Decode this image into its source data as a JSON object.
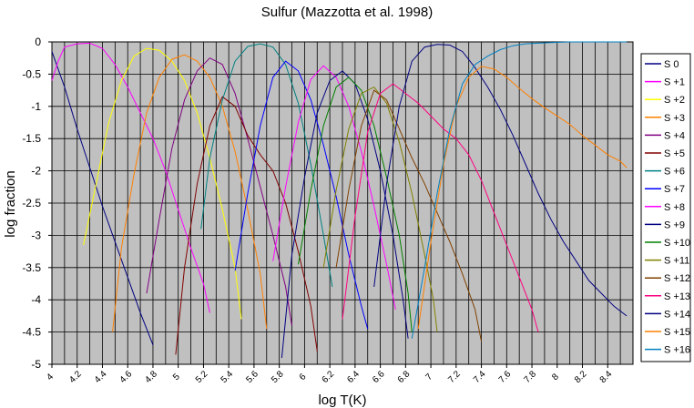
{
  "chart_data": {
    "type": "line",
    "title": "Sulfur  (Mazzotta et al. 1998)",
    "xlabel": "log T(K)",
    "ylabel": "log fraction",
    "xlim": [
      4.0,
      8.6
    ],
    "ylim": [
      -5,
      0
    ],
    "x_minor_step": 0.1,
    "x_tick_labels": [
      "4",
      "4.2",
      "4.4",
      "4.6",
      "4.8",
      "5",
      "5.2",
      "5.4",
      "5.6",
      "5.8",
      "6",
      "6.2",
      "6.4",
      "6.6",
      "6.8",
      "7",
      "7.2",
      "7.4",
      "7.6",
      "7.8",
      "8",
      "8.2",
      "8.4"
    ],
    "y_tick_labels": [
      "0",
      "-0.5",
      "-1",
      "-1.5",
      "-2",
      "-2.5",
      "-3",
      "-3.5",
      "-4",
      "-4.5",
      "-5"
    ],
    "grid": true,
    "plot_background": "#c0c0c0",
    "legend_position": "right",
    "series": [
      {
        "name": "S  0",
        "color": "#000080",
        "points": [
          [
            4.0,
            -0.15
          ],
          [
            4.1,
            -0.7
          ],
          [
            4.2,
            -1.35
          ],
          [
            4.3,
            -1.95
          ],
          [
            4.4,
            -2.55
          ],
          [
            4.5,
            -3.1
          ],
          [
            4.6,
            -3.65
          ],
          [
            4.7,
            -4.2
          ],
          [
            4.8,
            -4.7
          ]
        ]
      },
      {
        "name": "S +1",
        "color": "#ff00ff",
        "points": [
          [
            4.0,
            -0.6
          ],
          [
            4.05,
            -0.3
          ],
          [
            4.1,
            -0.08
          ],
          [
            4.2,
            -0.03
          ],
          [
            4.3,
            -0.02
          ],
          [
            4.4,
            -0.1
          ],
          [
            4.5,
            -0.35
          ],
          [
            4.6,
            -0.7
          ],
          [
            4.7,
            -1.1
          ],
          [
            4.8,
            -1.5
          ],
          [
            4.9,
            -2.0
          ],
          [
            5.0,
            -2.6
          ],
          [
            5.1,
            -3.2
          ],
          [
            5.2,
            -3.75
          ],
          [
            5.25,
            -4.2
          ]
        ]
      },
      {
        "name": "S +2",
        "color": "#ffff00",
        "points": [
          [
            4.25,
            -3.15
          ],
          [
            4.35,
            -2.2
          ],
          [
            4.45,
            -1.25
          ],
          [
            4.55,
            -0.6
          ],
          [
            4.65,
            -0.22
          ],
          [
            4.75,
            -0.1
          ],
          [
            4.85,
            -0.13
          ],
          [
            4.95,
            -0.3
          ],
          [
            5.05,
            -0.6
          ],
          [
            5.15,
            -1.1
          ],
          [
            5.25,
            -1.8
          ],
          [
            5.35,
            -2.6
          ],
          [
            5.45,
            -3.5
          ],
          [
            5.5,
            -4.3
          ]
        ]
      },
      {
        "name": "S +3",
        "color": "#ff8000",
        "points": [
          [
            4.48,
            -4.5
          ],
          [
            4.55,
            -3.2
          ],
          [
            4.65,
            -2.05
          ],
          [
            4.75,
            -1.1
          ],
          [
            4.85,
            -0.55
          ],
          [
            4.95,
            -0.27
          ],
          [
            5.05,
            -0.2
          ],
          [
            5.15,
            -0.3
          ],
          [
            5.25,
            -0.55
          ],
          [
            5.35,
            -1.0
          ],
          [
            5.45,
            -1.7
          ],
          [
            5.55,
            -2.6
          ],
          [
            5.65,
            -3.6
          ],
          [
            5.7,
            -4.45
          ]
        ]
      },
      {
        "name": "S +4",
        "color": "#800080",
        "points": [
          [
            4.75,
            -3.9
          ],
          [
            4.85,
            -2.75
          ],
          [
            4.95,
            -1.65
          ],
          [
            5.05,
            -0.9
          ],
          [
            5.15,
            -0.45
          ],
          [
            5.25,
            -0.25
          ],
          [
            5.35,
            -0.35
          ],
          [
            5.45,
            -0.8
          ],
          [
            5.55,
            -1.5
          ],
          [
            5.65,
            -2.25
          ],
          [
            5.75,
            -3.0
          ],
          [
            5.85,
            -3.8
          ],
          [
            5.9,
            -4.4
          ]
        ]
      },
      {
        "name": "S +5",
        "color": "#800000",
        "points": [
          [
            4.98,
            -4.85
          ],
          [
            5.05,
            -3.5
          ],
          [
            5.15,
            -2.2
          ],
          [
            5.25,
            -1.3
          ],
          [
            5.35,
            -0.85
          ],
          [
            5.45,
            -1.0
          ],
          [
            5.55,
            -1.45
          ],
          [
            5.65,
            -1.75
          ],
          [
            5.75,
            -2.0
          ],
          [
            5.85,
            -2.5
          ],
          [
            5.95,
            -3.25
          ],
          [
            6.05,
            -4.1
          ],
          [
            6.1,
            -4.8
          ]
        ]
      },
      {
        "name": "S +6",
        "color": "#008080",
        "points": [
          [
            5.18,
            -2.9
          ],
          [
            5.25,
            -1.8
          ],
          [
            5.35,
            -0.9
          ],
          [
            5.45,
            -0.3
          ],
          [
            5.55,
            -0.07
          ],
          [
            5.65,
            -0.03
          ],
          [
            5.75,
            -0.08
          ],
          [
            5.85,
            -0.35
          ],
          [
            5.95,
            -0.95
          ],
          [
            6.05,
            -1.9
          ],
          [
            6.15,
            -3.0
          ],
          [
            6.22,
            -3.8
          ]
        ]
      },
      {
        "name": "S +7",
        "color": "#0000ff",
        "points": [
          [
            5.45,
            -3.55
          ],
          [
            5.55,
            -2.35
          ],
          [
            5.65,
            -1.3
          ],
          [
            5.75,
            -0.55
          ],
          [
            5.85,
            -0.3
          ],
          [
            5.95,
            -0.45
          ],
          [
            6.05,
            -0.9
          ],
          [
            6.15,
            -1.6
          ],
          [
            6.25,
            -2.4
          ],
          [
            6.35,
            -3.3
          ],
          [
            6.45,
            -4.1
          ],
          [
            6.5,
            -4.45
          ]
        ]
      },
      {
        "name": "S +8",
        "color": "#ff00ff",
        "points": [
          [
            5.75,
            -3.4
          ],
          [
            5.85,
            -2.25
          ],
          [
            5.95,
            -1.25
          ],
          [
            6.05,
            -0.58
          ],
          [
            6.15,
            -0.37
          ],
          [
            6.25,
            -0.55
          ],
          [
            6.35,
            -1.0
          ],
          [
            6.45,
            -1.7
          ],
          [
            6.55,
            -2.55
          ],
          [
            6.65,
            -3.45
          ],
          [
            6.72,
            -4.15
          ]
        ]
      },
      {
        "name": "S +9",
        "color": "#000080",
        "points": [
          [
            5.82,
            -4.9
          ],
          [
            5.9,
            -3.3
          ],
          [
            6.0,
            -2.1
          ],
          [
            6.1,
            -1.1
          ],
          [
            6.2,
            -0.6
          ],
          [
            6.3,
            -0.45
          ],
          [
            6.4,
            -0.65
          ],
          [
            6.5,
            -1.2
          ],
          [
            6.6,
            -2.0
          ],
          [
            6.7,
            -3.0
          ],
          [
            6.78,
            -4.0
          ],
          [
            6.82,
            -4.6
          ]
        ]
      },
      {
        "name": "S +10",
        "color": "#008000",
        "points": [
          [
            5.95,
            -3.45
          ],
          [
            6.05,
            -2.3
          ],
          [
            6.15,
            -1.3
          ],
          [
            6.25,
            -0.7
          ],
          [
            6.35,
            -0.55
          ],
          [
            6.45,
            -0.75
          ],
          [
            6.55,
            -1.3
          ],
          [
            6.65,
            -2.1
          ],
          [
            6.75,
            -3.0
          ],
          [
            6.82,
            -3.9
          ],
          [
            6.85,
            -4.5
          ]
        ]
      },
      {
        "name": "S +11",
        "color": "#808000",
        "points": [
          [
            6.15,
            -3.5
          ],
          [
            6.25,
            -2.3
          ],
          [
            6.35,
            -1.35
          ],
          [
            6.45,
            -0.8
          ],
          [
            6.55,
            -0.7
          ],
          [
            6.65,
            -0.95
          ],
          [
            6.75,
            -1.55
          ],
          [
            6.85,
            -2.35
          ],
          [
            6.95,
            -3.3
          ],
          [
            7.02,
            -4.0
          ],
          [
            7.05,
            -4.5
          ]
        ]
      },
      {
        "name": "S +12",
        "color": "#804000",
        "points": [
          [
            6.25,
            -3.5
          ],
          [
            6.35,
            -2.3
          ],
          [
            6.45,
            -1.3
          ],
          [
            6.55,
            -0.75
          ],
          [
            6.65,
            -0.9
          ],
          [
            6.75,
            -1.35
          ],
          [
            6.85,
            -1.8
          ],
          [
            6.95,
            -2.2
          ],
          [
            7.05,
            -2.65
          ],
          [
            7.15,
            -3.1
          ],
          [
            7.25,
            -3.6
          ],
          [
            7.35,
            -4.15
          ],
          [
            7.4,
            -4.65
          ]
        ]
      },
      {
        "name": "S +13",
        "color": "#ff0080",
        "points": [
          [
            6.3,
            -4.3
          ],
          [
            6.4,
            -2.7
          ],
          [
            6.5,
            -1.4
          ],
          [
            6.6,
            -0.8
          ],
          [
            6.7,
            -0.65
          ],
          [
            6.8,
            -0.8
          ],
          [
            6.9,
            -0.95
          ],
          [
            7.0,
            -1.15
          ],
          [
            7.1,
            -1.35
          ],
          [
            7.2,
            -1.5
          ],
          [
            7.3,
            -1.75
          ],
          [
            7.4,
            -2.15
          ],
          [
            7.5,
            -2.65
          ],
          [
            7.6,
            -3.15
          ],
          [
            7.7,
            -3.65
          ],
          [
            7.8,
            -4.15
          ],
          [
            7.85,
            -4.5
          ]
        ]
      },
      {
        "name": "S +14",
        "color": "#000080",
        "points": [
          [
            6.55,
            -3.8
          ],
          [
            6.65,
            -2.2
          ],
          [
            6.75,
            -1.0
          ],
          [
            6.85,
            -0.3
          ],
          [
            6.95,
            -0.08
          ],
          [
            7.05,
            -0.04
          ],
          [
            7.15,
            -0.05
          ],
          [
            7.25,
            -0.15
          ],
          [
            7.35,
            -0.4
          ],
          [
            7.45,
            -0.7
          ],
          [
            7.55,
            -1.05
          ],
          [
            7.65,
            -1.45
          ],
          [
            7.75,
            -1.9
          ],
          [
            7.85,
            -2.35
          ],
          [
            7.95,
            -2.75
          ],
          [
            8.05,
            -3.1
          ],
          [
            8.15,
            -3.4
          ],
          [
            8.25,
            -3.7
          ],
          [
            8.35,
            -3.9
          ],
          [
            8.45,
            -4.1
          ],
          [
            8.55,
            -4.25
          ]
        ]
      },
      {
        "name": "S +15",
        "color": "#ff8000",
        "points": [
          [
            6.9,
            -4.45
          ],
          [
            7.0,
            -3.1
          ],
          [
            7.1,
            -1.9
          ],
          [
            7.2,
            -1.0
          ],
          [
            7.3,
            -0.55
          ],
          [
            7.4,
            -0.38
          ],
          [
            7.5,
            -0.42
          ],
          [
            7.6,
            -0.55
          ],
          [
            7.7,
            -0.72
          ],
          [
            7.8,
            -0.88
          ],
          [
            7.9,
            -1.02
          ],
          [
            8.0,
            -1.15
          ],
          [
            8.1,
            -1.28
          ],
          [
            8.2,
            -1.45
          ],
          [
            8.3,
            -1.6
          ],
          [
            8.4,
            -1.75
          ],
          [
            8.5,
            -1.85
          ],
          [
            8.55,
            -1.95
          ]
        ]
      },
      {
        "name": "S +16",
        "color": "#0080c0",
        "points": [
          [
            6.85,
            -4.6
          ],
          [
            6.95,
            -3.5
          ],
          [
            7.05,
            -2.35
          ],
          [
            7.15,
            -1.35
          ],
          [
            7.25,
            -0.65
          ],
          [
            7.35,
            -0.35
          ],
          [
            7.45,
            -0.22
          ],
          [
            7.55,
            -0.12
          ],
          [
            7.65,
            -0.06
          ],
          [
            7.75,
            -0.03
          ],
          [
            7.85,
            -0.02
          ],
          [
            7.95,
            -0.01
          ],
          [
            8.1,
            -0.0
          ],
          [
            8.3,
            0.0
          ],
          [
            8.55,
            0.0
          ]
        ]
      }
    ]
  }
}
